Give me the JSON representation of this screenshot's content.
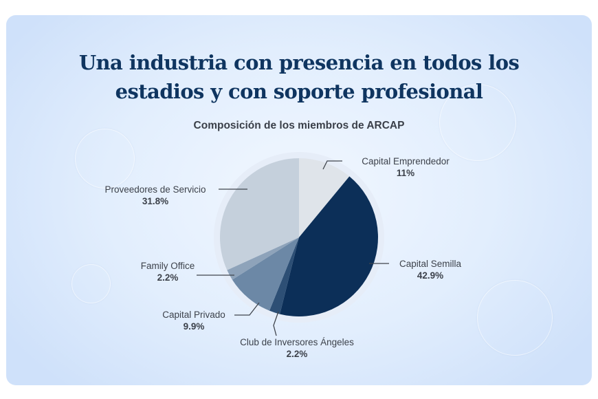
{
  "card": {
    "title_line1": "Una industria con presencia en todos los",
    "title_line2": "estadios y con soporte profesional",
    "chart_subtitle": "Composición de los miembros de ARCAP"
  },
  "labels": {
    "capital_emprendedor": {
      "name": "Capital Emprendedor",
      "pct": "11%"
    },
    "capital_semilla": {
      "name": "Capital Semilla",
      "pct": "42.9%"
    },
    "club_angeles": {
      "name": "Club de Inversores Ángeles",
      "pct": "2.2%"
    },
    "capital_privado": {
      "name": "Capital Privado",
      "pct": "9.9%"
    },
    "family_office": {
      "name": "Family Office",
      "pct": "2.2%"
    },
    "proveedores": {
      "name": "Proveedores de Servicio",
      "pct": "31.8%"
    }
  },
  "colors": {
    "title": "#0f3560",
    "capital_emprendedor": "#dfe4ea",
    "capital_semilla": "#0c2f58",
    "club_angeles": "#2d4f75",
    "capital_privado": "#6c88a6",
    "family_office": "#8ea3ba",
    "proveedores": "#c5d0dc"
  },
  "chart_data": {
    "type": "pie",
    "title": "Composición de los miembros de ARCAP",
    "categories": [
      "Capital Emprendedor",
      "Capital Semilla",
      "Club de Inversores Ángeles",
      "Capital Privado",
      "Family Office",
      "Proveedores de Servicio"
    ],
    "values": [
      11,
      42.9,
      2.2,
      9.9,
      2.2,
      31.8
    ],
    "unit": "%",
    "start_angle": "12 o'clock",
    "direction": "clockwise",
    "legend": "callout labels"
  }
}
